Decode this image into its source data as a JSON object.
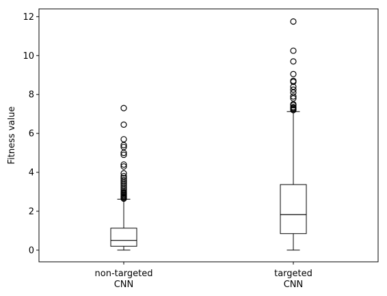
{
  "chart_data": {
    "type": "box",
    "title": "",
    "xlabel": "",
    "ylabel": "Fitness value",
    "ylim": [
      -0.6,
      12.4
    ],
    "yticks": [
      0,
      2,
      4,
      6,
      8,
      10,
      12
    ],
    "grid": false,
    "series": [
      {
        "label_lines": [
          "non-targeted",
          "CNN"
        ],
        "whislo": 0.0,
        "q1": 0.2,
        "median": 0.5,
        "q3": 1.13,
        "whishi": 2.62,
        "fliers": [
          2.65,
          2.7,
          2.75,
          2.8,
          2.85,
          2.9,
          2.95,
          3.0,
          3.1,
          3.2,
          3.3,
          3.4,
          3.5,
          3.6,
          3.7,
          3.8,
          3.95,
          4.3,
          4.4,
          4.9,
          5.0,
          5.3,
          5.4,
          5.7,
          6.45,
          7.3
        ]
      },
      {
        "label_lines": [
          "targeted",
          "CNN"
        ],
        "whislo": 0.0,
        "q1": 0.85,
        "median": 1.83,
        "q3": 3.37,
        "whishi": 7.12,
        "fliers": [
          7.2,
          7.25,
          7.3,
          7.35,
          7.45,
          7.5,
          7.8,
          7.9,
          8.1,
          8.25,
          8.4,
          8.65,
          8.7,
          9.05,
          9.7,
          10.25,
          11.75
        ]
      }
    ]
  }
}
